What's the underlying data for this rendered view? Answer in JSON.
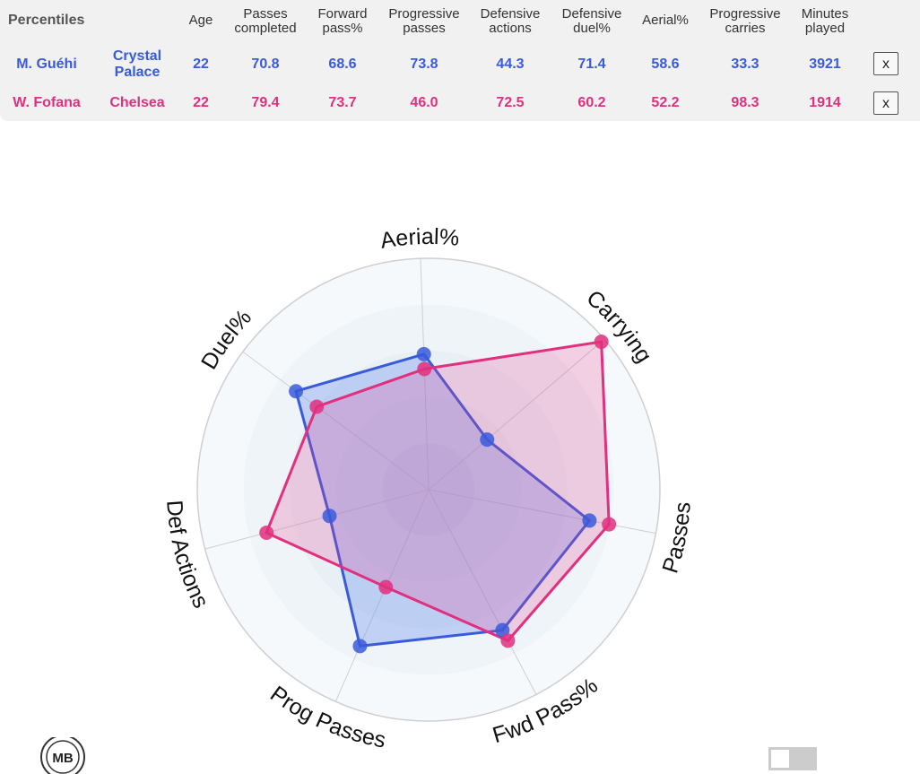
{
  "table": {
    "percentiles_label": "Percentiles",
    "headers": {
      "age": "Age",
      "passes_completed": [
        "Passes",
        "completed"
      ],
      "forward_pass": [
        "Forward",
        "pass%"
      ],
      "progressive_passes": [
        "Progressive",
        "passes"
      ],
      "defensive_actions": [
        "Defensive",
        "actions"
      ],
      "defensive_duel": [
        "Defensive",
        "duel%"
      ],
      "aerial": "Aerial%",
      "progressive_carries": [
        "Progressive",
        "carries"
      ],
      "minutes_played": [
        "Minutes",
        "played"
      ]
    },
    "rows": [
      {
        "name": "M. Guéhi",
        "team": [
          "Crystal",
          "Palace"
        ],
        "age": "22",
        "passes_completed": "70.8",
        "forward_pass": "68.6",
        "progressive_passes": "73.8",
        "defensive_actions": "44.3",
        "defensive_duel": "71.4",
        "aerial": "58.6",
        "progressive_carries": "33.3",
        "minutes_played": "3921",
        "remove_label": "x"
      },
      {
        "name": "W. Fofana",
        "team": [
          "Chelsea"
        ],
        "age": "22",
        "passes_completed": "79.4",
        "forward_pass": "73.7",
        "progressive_passes": "46.0",
        "defensive_actions": "72.5",
        "defensive_duel": "60.2",
        "aerial": "52.2",
        "progressive_carries": "98.3",
        "minutes_played": "1914",
        "remove_label": "x"
      }
    ]
  },
  "colors": {
    "player1": "#3a5bd9",
    "player2": "#e0307e",
    "player1_fill": "rgba(90,130,240,0.30)",
    "player2_fill": "rgba(230,60,140,0.22)"
  },
  "chart_data": {
    "type": "radar",
    "axes": [
      "Aerial%",
      "Carrying",
      "Passes",
      "Fwd Pass%",
      "Prog Passes",
      "Def Actions",
      "Duel%"
    ],
    "range": [
      0,
      100
    ],
    "series": [
      {
        "name": "M. Guéhi",
        "values": [
          58.6,
          33.3,
          70.8,
          68.6,
          73.8,
          44.3,
          71.4
        ]
      },
      {
        "name": "W. Fofana",
        "values": [
          52.2,
          98.3,
          79.4,
          73.7,
          46.0,
          72.5,
          60.2
        ]
      }
    ]
  },
  "logo": {
    "text": "MB"
  }
}
